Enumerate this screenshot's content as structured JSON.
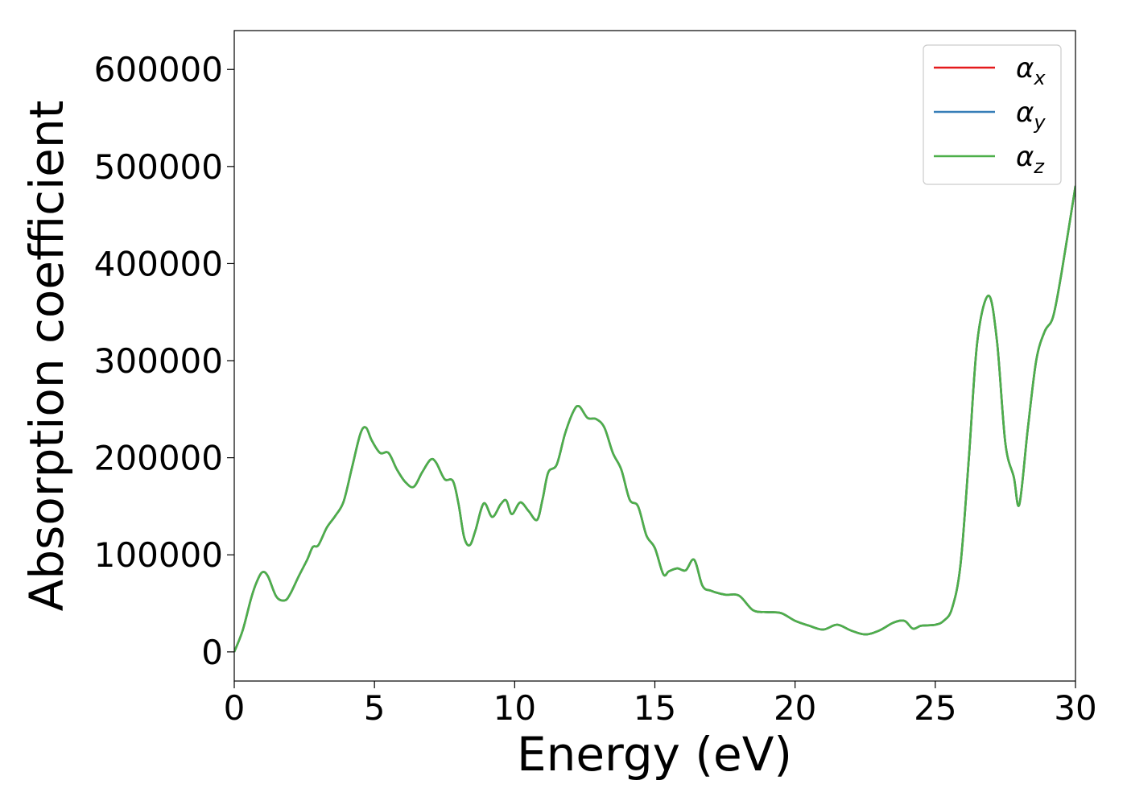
{
  "chart_data": {
    "type": "line",
    "title": "",
    "xlabel": "Energy (eV)",
    "ylabel": "Absorption coefficient",
    "xlim": [
      0,
      30
    ],
    "ylim": [
      -30000,
      640000
    ],
    "xticks": [
      0,
      5,
      10,
      15,
      20,
      25,
      30
    ],
    "xtick_labels": [
      "0",
      "5",
      "10",
      "15",
      "20",
      "25",
      "30"
    ],
    "yticks": [
      0,
      100000,
      200000,
      300000,
      400000,
      500000,
      600000
    ],
    "ytick_labels": [
      "0",
      "100000",
      "200000",
      "300000",
      "400000",
      "500000",
      "600000"
    ],
    "grid": false,
    "legend_position": "top-right",
    "x": [
      0,
      0.3,
      0.6,
      0.8,
      1.0,
      1.2,
      1.5,
      1.8,
      2.0,
      2.3,
      2.6,
      2.8,
      3.0,
      3.3,
      3.6,
      3.9,
      4.2,
      4.5,
      4.7,
      4.9,
      5.2,
      5.5,
      5.8,
      6.1,
      6.4,
      6.7,
      7.0,
      7.2,
      7.5,
      7.8,
      8.0,
      8.2,
      8.4,
      8.6,
      8.9,
      9.2,
      9.5,
      9.7,
      9.9,
      10.2,
      10.5,
      10.8,
      11.0,
      11.2,
      11.5,
      11.8,
      12.1,
      12.3,
      12.6,
      12.9,
      13.2,
      13.5,
      13.8,
      14.1,
      14.4,
      14.7,
      15.0,
      15.3,
      15.5,
      15.8,
      16.1,
      16.4,
      16.7,
      17.0,
      17.5,
      18.0,
      18.5,
      19.0,
      19.5,
      20.0,
      20.5,
      21.0,
      21.5,
      22.0,
      22.5,
      23.0,
      23.5,
      23.9,
      24.2,
      24.5,
      25.0,
      25.3,
      25.6,
      25.9,
      26.2,
      26.5,
      26.9,
      27.2,
      27.5,
      27.8,
      28.0,
      28.3,
      28.6,
      28.9,
      29.2,
      29.5,
      30.0
    ],
    "series": [
      {
        "name": "α_x",
        "color": "#e41a1c",
        "values": [
          0,
          22000,
          55000,
          72000,
          82000,
          78000,
          57000,
          53000,
          60000,
          78000,
          95000,
          108000,
          110000,
          128000,
          140000,
          155000,
          190000,
          225000,
          231000,
          218000,
          205000,
          205000,
          188000,
          175000,
          170000,
          185000,
          198000,
          195000,
          178000,
          176000,
          152000,
          118000,
          110000,
          125000,
          153000,
          139000,
          152000,
          156000,
          142000,
          154000,
          145000,
          136000,
          158000,
          185000,
          193000,
          225000,
          248000,
          253000,
          241000,
          240000,
          231000,
          205000,
          188000,
          157000,
          150000,
          120000,
          107000,
          80000,
          83000,
          86000,
          84000,
          95000,
          68000,
          63000,
          59000,
          58000,
          43000,
          41000,
          40000,
          32000,
          27000,
          23000,
          28000,
          22000,
          18000,
          22000,
          30000,
          32000,
          24000,
          27000,
          28000,
          32000,
          45000,
          90000,
          200000,
          320000,
          367000,
          320000,
          215000,
          180000,
          152000,
          230000,
          300000,
          330000,
          345000,
          390000,
          480000
        ]
      },
      {
        "name": "α_y",
        "color": "#377eb8",
        "values": [
          0,
          22000,
          55000,
          72000,
          82000,
          78000,
          57000,
          53000,
          60000,
          78000,
          95000,
          108000,
          110000,
          128000,
          140000,
          155000,
          190000,
          225000,
          231000,
          218000,
          205000,
          205000,
          188000,
          175000,
          170000,
          185000,
          198000,
          195000,
          178000,
          176000,
          152000,
          118000,
          110000,
          125000,
          153000,
          139000,
          152000,
          156000,
          142000,
          154000,
          145000,
          136000,
          158000,
          185000,
          193000,
          225000,
          248000,
          253000,
          241000,
          240000,
          231000,
          205000,
          188000,
          157000,
          150000,
          120000,
          107000,
          80000,
          83000,
          86000,
          84000,
          95000,
          68000,
          63000,
          59000,
          58000,
          43000,
          41000,
          40000,
          32000,
          27000,
          23000,
          28000,
          22000,
          18000,
          22000,
          30000,
          32000,
          24000,
          27000,
          28000,
          32000,
          45000,
          90000,
          200000,
          320000,
          367000,
          320000,
          215000,
          180000,
          152000,
          230000,
          300000,
          330000,
          345000,
          390000,
          480000
        ]
      },
      {
        "name": "α_z",
        "color": "#4daf4a",
        "values": [
          0,
          22000,
          55000,
          72000,
          82000,
          78000,
          57000,
          53000,
          60000,
          78000,
          95000,
          108000,
          110000,
          128000,
          140000,
          155000,
          190000,
          225000,
          231000,
          218000,
          205000,
          205000,
          188000,
          175000,
          170000,
          185000,
          198000,
          195000,
          178000,
          176000,
          152000,
          118000,
          110000,
          125000,
          153000,
          139000,
          152000,
          156000,
          142000,
          154000,
          145000,
          136000,
          158000,
          185000,
          193000,
          225000,
          248000,
          253000,
          241000,
          240000,
          231000,
          205000,
          188000,
          157000,
          150000,
          120000,
          107000,
          80000,
          83000,
          86000,
          84000,
          95000,
          68000,
          63000,
          59000,
          58000,
          43000,
          41000,
          40000,
          32000,
          27000,
          23000,
          28000,
          22000,
          18000,
          22000,
          30000,
          32000,
          24000,
          27000,
          28000,
          32000,
          45000,
          90000,
          200000,
          320000,
          367000,
          320000,
          215000,
          180000,
          152000,
          230000,
          300000,
          330000,
          345000,
          390000,
          480000
        ]
      }
    ],
    "legend": [
      {
        "symbol": "α",
        "sub": "x"
      },
      {
        "symbol": "α",
        "sub": "y"
      },
      {
        "symbol": "α",
        "sub": "z"
      }
    ]
  }
}
